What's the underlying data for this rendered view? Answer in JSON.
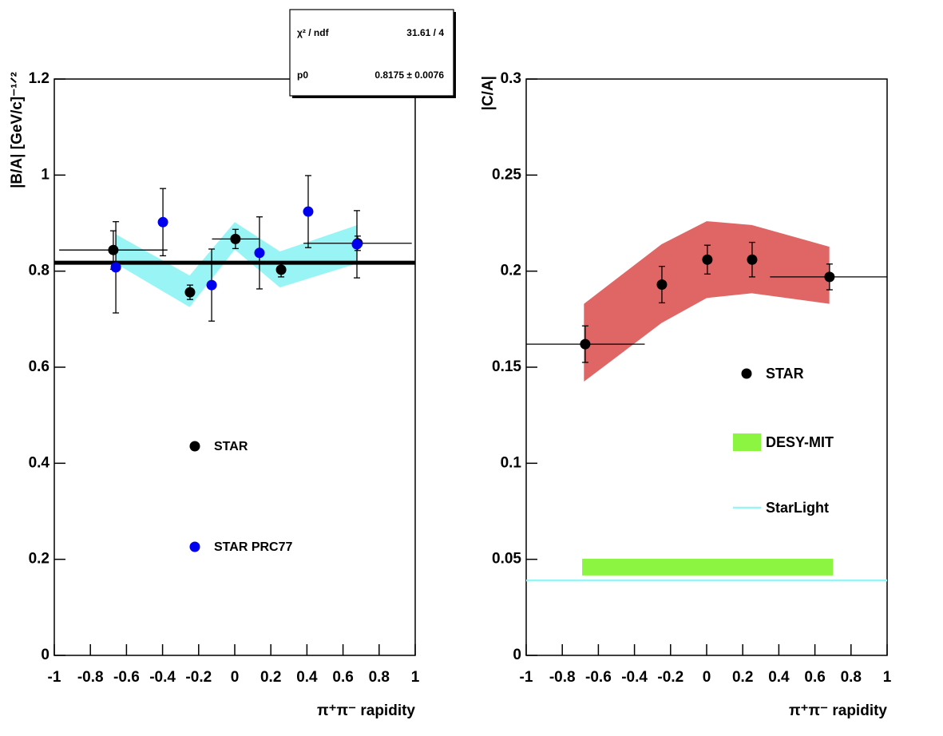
{
  "chart_data": [
    {
      "type": "scatter",
      "ylabel": "|B/A| [GeV/c]⁻¹ᐟ²",
      "xlabel": "π⁺π⁻ rapidity",
      "xlim": [
        -1,
        1
      ],
      "ylim": [
        0,
        1.2
      ],
      "xticks": [
        -1,
        -0.8,
        -0.6,
        -0.4,
        -0.2,
        0,
        0.2,
        0.4,
        0.6,
        0.8,
        1
      ],
      "yticks": [
        0,
        0.2,
        0.4,
        0.6,
        0.8,
        1,
        1.2
      ],
      "stats": [
        [
          "χ² / ndf",
          "31.61 / 4"
        ],
        [
          "p0",
          "0.8175 ± 0.0076"
        ]
      ],
      "fit": {
        "value": 0.8175,
        "color": "#000000"
      },
      "bands": [
        {
          "color": "#99f5f5",
          "x": [
            -0.66,
            -0.25,
            0,
            0.25,
            0.68
          ],
          "low": [
            0.816,
            0.725,
            0.845,
            0.766,
            0.816
          ],
          "high": [
            0.877,
            0.791,
            0.902,
            0.841,
            0.896
          ]
        }
      ],
      "series": [
        {
          "name": "STAR",
          "color": "#000000",
          "x": [
            -0.673,
            -0.248,
            0.004,
            0.257,
            0.681
          ],
          "values": [
            0.844,
            0.756,
            0.867,
            0.803,
            0.858
          ],
          "errors": [
            0.04,
            0.015,
            0.02,
            0.015,
            0.015
          ],
          "xerr": [
            0.3,
            0,
            0.13,
            0,
            0.3
          ]
        },
        {
          "name": "STAR PRC77",
          "color": "#0000ee",
          "x": [
            -0.659,
            -0.398,
            -0.128,
            0.137,
            0.407,
            0.677
          ],
          "values": [
            0.808,
            0.902,
            0.771,
            0.838,
            0.924,
            0.856
          ],
          "errors": [
            0.095,
            0.07,
            0.075,
            0.075,
            0.075,
            0.07
          ]
        }
      ]
    },
    {
      "type": "scatter",
      "ylabel": "|C/A|",
      "xlabel": "π⁺π⁻ rapidity",
      "xlim": [
        -1,
        1
      ],
      "ylim": [
        0,
        0.3
      ],
      "xticks": [
        -1,
        -0.8,
        -0.6,
        -0.4,
        -0.2,
        0,
        0.2,
        0.4,
        0.6,
        0.8,
        1
      ],
      "yticks": [
        0,
        0.05,
        0.1,
        0.15,
        0.2,
        0.25,
        0.3
      ],
      "bands": [
        {
          "color": "#e06666",
          "x": [
            -0.68,
            -0.25,
            0,
            0.25,
            0.68
          ],
          "low": [
            0.1425,
            0.173,
            0.186,
            0.1885,
            0.183
          ],
          "high": [
            0.183,
            0.214,
            0.226,
            0.224,
            0.2127
          ]
        }
      ],
      "series": [
        {
          "name": "STAR",
          "color": "#000000",
          "x": [
            -0.673,
            -0.248,
            0.004,
            0.252,
            0.681
          ],
          "values": [
            0.162,
            0.193,
            0.206,
            0.206,
            0.197
          ],
          "errors": [
            0.0095,
            0.0095,
            0.0075,
            0.009,
            0.0067
          ],
          "xerr": [
            0.33,
            0,
            0,
            0,
            0.33
          ]
        }
      ],
      "boxes": [
        {
          "name": "DESY-MIT",
          "color": "#8cf542",
          "edges": [
            -0.69,
            0,
            0.7
          ],
          "low": [
            0.0416,
            0.0416
          ],
          "high": [
            0.0503,
            0.0503
          ]
        }
      ],
      "lines": [
        {
          "name": "StarLight",
          "color": "#99f5f5",
          "value": 0.039
        }
      ]
    }
  ]
}
